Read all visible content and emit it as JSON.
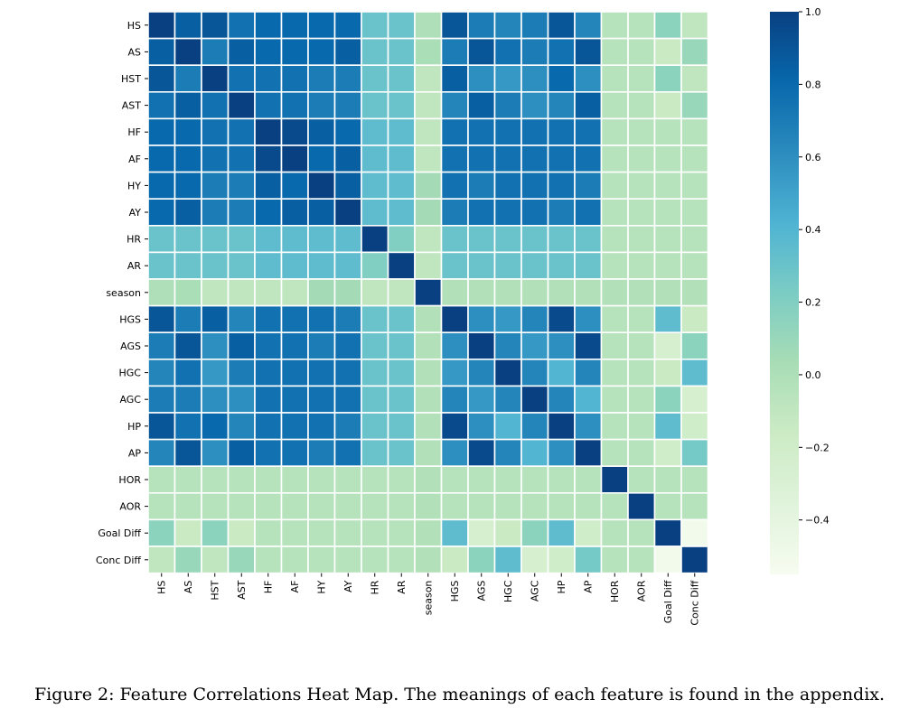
{
  "chart_data": {
    "type": "heatmap",
    "labels": [
      "HS",
      "AS",
      "HST",
      "AST",
      "HF",
      "AF",
      "HY",
      "AY",
      "HR",
      "AR",
      "season",
      "HGS",
      "AGS",
      "HGC",
      "AGC",
      "HP",
      "AP",
      "HOR",
      "AOR",
      "Goal Diff",
      "Conc Diff"
    ],
    "values": [
      [
        1.0,
        0.85,
        0.9,
        0.75,
        0.8,
        0.8,
        0.8,
        0.8,
        0.3,
        0.3,
        0.0,
        0.9,
        0.7,
        0.65,
        0.7,
        0.9,
        0.65,
        -0.05,
        -0.05,
        0.15,
        -0.1
      ],
      [
        0.85,
        1.0,
        0.7,
        0.85,
        0.8,
        0.8,
        0.8,
        0.85,
        0.3,
        0.3,
        0.02,
        0.7,
        0.9,
        0.75,
        0.7,
        0.75,
        0.9,
        -0.05,
        -0.05,
        -0.15,
        0.1
      ],
      [
        0.9,
        0.7,
        1.0,
        0.75,
        0.75,
        0.75,
        0.7,
        0.7,
        0.3,
        0.3,
        -0.1,
        0.85,
        0.6,
        0.55,
        0.6,
        0.8,
        0.6,
        -0.05,
        -0.05,
        0.15,
        -0.1
      ],
      [
        0.75,
        0.85,
        0.75,
        1.0,
        0.75,
        0.75,
        0.7,
        0.7,
        0.3,
        0.3,
        -0.1,
        0.65,
        0.85,
        0.7,
        0.6,
        0.65,
        0.85,
        -0.05,
        -0.05,
        -0.15,
        0.1
      ],
      [
        0.8,
        0.8,
        0.75,
        0.75,
        1.0,
        0.95,
        0.85,
        0.8,
        0.35,
        0.35,
        -0.1,
        0.75,
        0.75,
        0.75,
        0.75,
        0.75,
        0.75,
        -0.05,
        -0.05,
        -0.05,
        -0.05
      ],
      [
        0.8,
        0.8,
        0.75,
        0.75,
        0.95,
        1.0,
        0.8,
        0.85,
        0.35,
        0.35,
        -0.1,
        0.75,
        0.75,
        0.75,
        0.75,
        0.75,
        0.75,
        -0.05,
        -0.05,
        -0.05,
        -0.05
      ],
      [
        0.8,
        0.8,
        0.7,
        0.7,
        0.85,
        0.8,
        1.0,
        0.85,
        0.35,
        0.35,
        0.05,
        0.75,
        0.7,
        0.75,
        0.75,
        0.75,
        0.7,
        -0.05,
        -0.05,
        -0.05,
        -0.05
      ],
      [
        0.8,
        0.85,
        0.7,
        0.7,
        0.8,
        0.85,
        0.85,
        1.0,
        0.35,
        0.35,
        0.05,
        0.7,
        0.75,
        0.75,
        0.75,
        0.7,
        0.75,
        -0.05,
        -0.05,
        -0.05,
        -0.05
      ],
      [
        0.3,
        0.3,
        0.3,
        0.3,
        0.35,
        0.35,
        0.35,
        0.35,
        1.0,
        0.2,
        -0.1,
        0.3,
        0.3,
        0.3,
        0.3,
        0.3,
        0.3,
        -0.05,
        -0.05,
        -0.05,
        -0.05
      ],
      [
        0.3,
        0.3,
        0.3,
        0.3,
        0.35,
        0.35,
        0.35,
        0.35,
        0.2,
        1.0,
        -0.1,
        0.3,
        0.3,
        0.3,
        0.3,
        0.3,
        0.3,
        -0.05,
        -0.05,
        -0.05,
        -0.05
      ],
      [
        0.0,
        0.02,
        -0.1,
        -0.1,
        -0.1,
        -0.1,
        0.05,
        0.05,
        -0.1,
        -0.1,
        1.0,
        -0.02,
        -0.02,
        -0.02,
        -0.02,
        -0.02,
        -0.02,
        -0.02,
        -0.02,
        -0.02,
        -0.02
      ],
      [
        0.9,
        0.7,
        0.85,
        0.65,
        0.75,
        0.75,
        0.75,
        0.7,
        0.3,
        0.3,
        -0.02,
        1.0,
        0.6,
        0.55,
        0.65,
        0.95,
        0.6,
        -0.05,
        -0.05,
        0.35,
        -0.15
      ],
      [
        0.7,
        0.9,
        0.6,
        0.85,
        0.75,
        0.75,
        0.7,
        0.75,
        0.3,
        0.3,
        -0.02,
        0.6,
        1.0,
        0.65,
        0.55,
        0.6,
        0.95,
        -0.05,
        -0.05,
        -0.25,
        0.15
      ],
      [
        0.65,
        0.75,
        0.55,
        0.7,
        0.75,
        0.75,
        0.75,
        0.75,
        0.3,
        0.3,
        -0.02,
        0.55,
        0.65,
        1.0,
        0.65,
        0.4,
        0.65,
        -0.05,
        -0.05,
        -0.15,
        0.35
      ],
      [
        0.7,
        0.7,
        0.6,
        0.6,
        0.75,
        0.75,
        0.75,
        0.75,
        0.3,
        0.3,
        -0.02,
        0.65,
        0.55,
        0.65,
        1.0,
        0.65,
        0.4,
        -0.05,
        -0.05,
        0.15,
        -0.25
      ],
      [
        0.9,
        0.75,
        0.8,
        0.65,
        0.75,
        0.75,
        0.75,
        0.7,
        0.3,
        0.3,
        -0.02,
        0.95,
        0.6,
        0.4,
        0.65,
        1.0,
        0.6,
        -0.05,
        -0.05,
        0.35,
        -0.2
      ],
      [
        0.65,
        0.9,
        0.6,
        0.85,
        0.75,
        0.75,
        0.7,
        0.75,
        0.3,
        0.3,
        -0.02,
        0.6,
        0.95,
        0.65,
        0.4,
        0.6,
        1.0,
        -0.05,
        -0.05,
        -0.2,
        0.25
      ],
      [
        -0.05,
        -0.05,
        -0.05,
        -0.05,
        -0.05,
        -0.05,
        -0.05,
        -0.05,
        -0.05,
        -0.05,
        -0.02,
        -0.05,
        -0.05,
        -0.05,
        -0.05,
        -0.05,
        -0.05,
        1.0,
        -0.05,
        -0.05,
        -0.05
      ],
      [
        -0.05,
        -0.05,
        -0.05,
        -0.05,
        -0.05,
        -0.05,
        -0.05,
        -0.05,
        -0.05,
        -0.05,
        -0.02,
        -0.05,
        -0.05,
        -0.05,
        -0.05,
        -0.05,
        -0.05,
        -0.05,
        1.0,
        -0.05,
        -0.05
      ],
      [
        0.15,
        -0.15,
        0.15,
        -0.15,
        -0.05,
        -0.05,
        -0.05,
        -0.05,
        -0.05,
        -0.05,
        -0.02,
        0.35,
        -0.25,
        -0.15,
        0.15,
        0.35,
        -0.2,
        -0.05,
        -0.05,
        1.0,
        -0.5
      ],
      [
        -0.1,
        0.1,
        -0.1,
        0.1,
        -0.05,
        -0.05,
        -0.05,
        -0.05,
        -0.05,
        -0.05,
        -0.02,
        -0.15,
        0.15,
        0.35,
        -0.25,
        -0.2,
        0.25,
        -0.05,
        -0.05,
        -0.5,
        1.0
      ]
    ],
    "colorbar": {
      "ticks": [
        1.0,
        0.8,
        0.6,
        0.4,
        0.2,
        0.0,
        -0.2,
        -0.4
      ],
      "tick_labels": [
        "1.0",
        "0.8",
        "0.6",
        "0.4",
        "0.2",
        "0.0",
        "−0.2",
        "−0.4"
      ],
      "range": [
        -0.55,
        1.0
      ],
      "colormap": "GnBu",
      "colors": [
        "#f7fcf0",
        "#e0f3db",
        "#ccebc5",
        "#a8ddb5",
        "#7bccc4",
        "#4eb3d3",
        "#2b8cbe",
        "#0868ac",
        "#084081"
      ]
    },
    "title": "",
    "xlabel": "",
    "ylabel": ""
  },
  "caption": "Figure 2: Feature Correlations Heat Map. The meanings of each feature is found in the appendix."
}
